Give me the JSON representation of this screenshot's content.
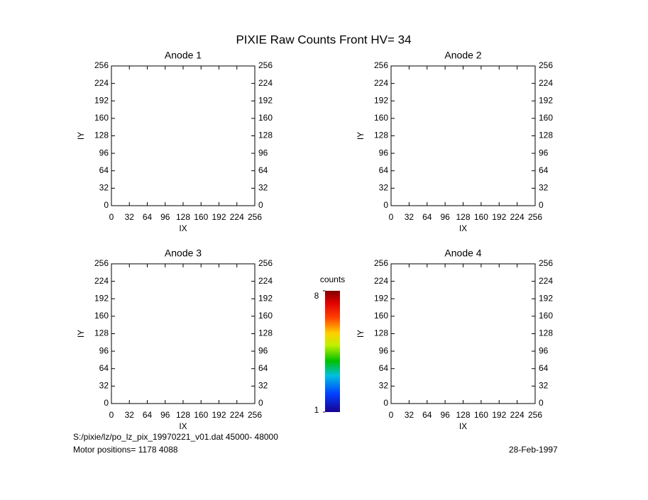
{
  "title": "PIXIE Raw Counts Front HV= 34",
  "file_info": "S:/pixie/lz/po_lz_pix_19970221_v01.dat    45000- 48000",
  "motor_positions": "Motor positions= 1178 4088",
  "date": "28-Feb-1997",
  "chart_data": [
    {
      "type": "heatmap",
      "title": "Anode 1",
      "xlabel": "IX",
      "ylabel": "IY",
      "xlim": [
        0,
        256
      ],
      "ylim": [
        0,
        256
      ],
      "xticks": [
        0,
        32,
        64,
        96,
        128,
        160,
        192,
        224,
        256
      ],
      "yticks": [
        0,
        32,
        64,
        96,
        128,
        160,
        192,
        224,
        256
      ]
    },
    {
      "type": "heatmap",
      "title": "Anode 2",
      "xlabel": "IX",
      "ylabel": "IY",
      "xlim": [
        0,
        256
      ],
      "ylim": [
        0,
        256
      ],
      "xticks": [
        0,
        32,
        64,
        96,
        128,
        160,
        192,
        224,
        256
      ],
      "yticks": [
        0,
        32,
        64,
        96,
        128,
        160,
        192,
        224,
        256
      ]
    },
    {
      "type": "heatmap",
      "title": "Anode 3",
      "xlabel": "IX",
      "ylabel": "IY",
      "xlim": [
        0,
        256
      ],
      "ylim": [
        0,
        256
      ],
      "xticks": [
        0,
        32,
        64,
        96,
        128,
        160,
        192,
        224,
        256
      ],
      "yticks": [
        0,
        32,
        64,
        96,
        128,
        160,
        192,
        224,
        256
      ]
    },
    {
      "type": "heatmap",
      "title": "Anode 4",
      "xlabel": "IX",
      "ylabel": "IY",
      "xlim": [
        0,
        256
      ],
      "ylim": [
        0,
        256
      ],
      "xticks": [
        0,
        32,
        64,
        96,
        128,
        160,
        192,
        224,
        256
      ],
      "yticks": [
        0,
        32,
        64,
        96,
        128,
        160,
        192,
        224,
        256
      ]
    },
    {
      "type": "colorbar",
      "title": "counts",
      "zlim": [
        1,
        8
      ],
      "zticks": [
        1,
        8
      ]
    }
  ]
}
